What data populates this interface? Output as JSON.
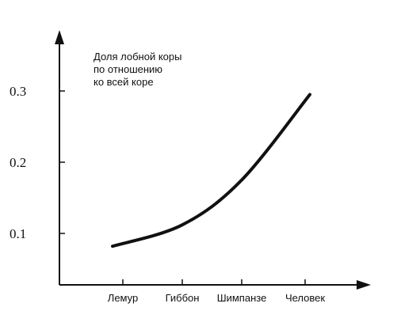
{
  "chart_data": {
    "type": "line",
    "title": "",
    "ylabel_lines": [
      "Доля лобной коры",
      "по отношению",
      "ко всей коре"
    ],
    "xlabel": "",
    "categories": [
      "Лемур",
      "Гиббон",
      "Шимпанзе",
      "Человек"
    ],
    "y_ticks": [
      "0.1",
      "0.2",
      "0.3"
    ],
    "ylim": [
      0.0,
      0.3
    ],
    "series": [
      {
        "values": [
          0.082,
          0.112,
          0.175,
          0.295
        ]
      }
    ],
    "grid": false,
    "line_color": "#111111"
  }
}
